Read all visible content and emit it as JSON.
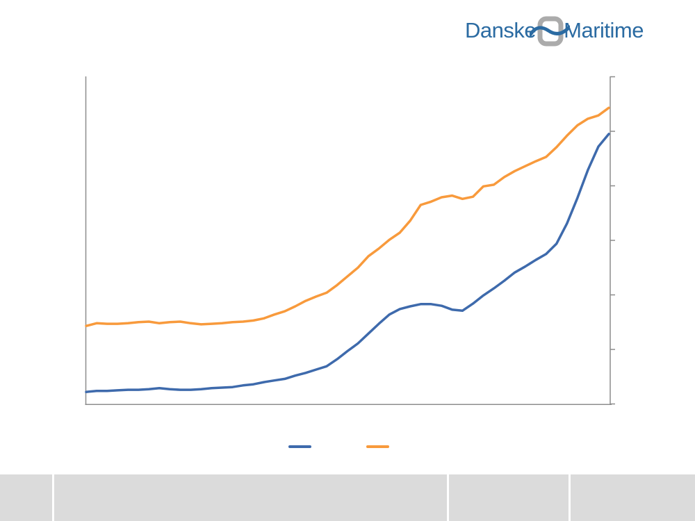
{
  "logo": {
    "text_left": "Danske",
    "text_right": "Maritime",
    "text_color": "#2B6BA2",
    "knot_gray": "#ABABAB",
    "wave_blue": "#2B6BA2"
  },
  "chart_data": {
    "type": "line",
    "title": "",
    "value_scale": "relative units; 1 unit = one y-axis tick interval (no numeric axis labels are visible in the image)",
    "x_axis": {
      "labels_visible": false,
      "ticks_visible": false
    },
    "y_axis": {
      "position": "right",
      "labels_visible": false,
      "tick_count": 7,
      "range_units": [
        0,
        6
      ]
    },
    "axis_color": "#8C8C8C",
    "grid": false,
    "legend": {
      "position": "bottom",
      "labels_visible": false
    },
    "series": [
      {
        "id": "series-1",
        "legend_label": "",
        "color": "#3E6AAC",
        "values": [
          0.22,
          0.24,
          0.24,
          0.25,
          0.26,
          0.26,
          0.27,
          0.29,
          0.27,
          0.26,
          0.26,
          0.27,
          0.29,
          0.3,
          0.31,
          0.34,
          0.36,
          0.4,
          0.43,
          0.46,
          0.52,
          0.57,
          0.63,
          0.69,
          0.82,
          0.97,
          1.11,
          1.29,
          1.47,
          1.64,
          1.74,
          1.79,
          1.83,
          1.83,
          1.8,
          1.73,
          1.71,
          1.84,
          1.99,
          2.12,
          2.26,
          2.41,
          2.52,
          2.64,
          2.75,
          2.94,
          3.31,
          3.78,
          4.29,
          4.72,
          4.95
        ]
      },
      {
        "id": "series-2",
        "legend_label": "",
        "color": "#F89A3C",
        "values": [
          1.43,
          1.48,
          1.47,
          1.47,
          1.48,
          1.5,
          1.51,
          1.48,
          1.5,
          1.51,
          1.48,
          1.46,
          1.47,
          1.48,
          1.5,
          1.51,
          1.53,
          1.57,
          1.64,
          1.7,
          1.79,
          1.89,
          1.97,
          2.04,
          2.18,
          2.34,
          2.5,
          2.71,
          2.85,
          3.01,
          3.14,
          3.36,
          3.65,
          3.71,
          3.79,
          3.82,
          3.76,
          3.8,
          3.99,
          4.02,
          4.16,
          4.27,
          4.36,
          4.45,
          4.53,
          4.71,
          4.92,
          5.11,
          5.23,
          5.29,
          5.43
        ]
      }
    ]
  },
  "footer": {
    "cell_color": "#DBDBDB",
    "cells": [
      "",
      "",
      "",
      ""
    ]
  }
}
